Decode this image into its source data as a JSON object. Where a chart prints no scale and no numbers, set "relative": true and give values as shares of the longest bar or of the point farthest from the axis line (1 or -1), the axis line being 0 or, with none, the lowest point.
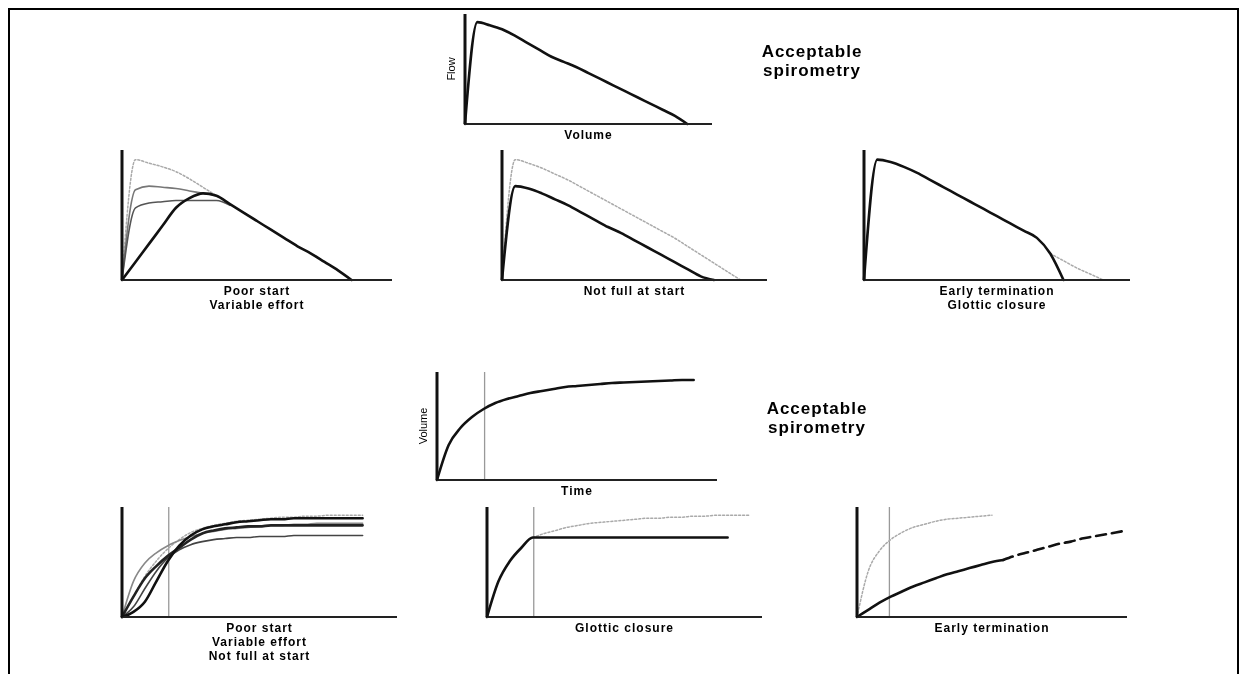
{
  "chart_data": [
    {
      "type": "line",
      "relative": true,
      "ylabel": "Flow",
      "xlabel": "Volume",
      "annotations": [
        "Acceptable\nspirometry"
      ],
      "categories": [
        null,
        null,
        null,
        null,
        null,
        null,
        null,
        null,
        null,
        null,
        null,
        null,
        null,
        null,
        null,
        null,
        null,
        null,
        null,
        null,
        null
      ],
      "series": [
        {
          "color": "#111111",
          "values": [
            0,
            1,
            0.97,
            0.93,
            0.87,
            0.8,
            0.73,
            0.66,
            0.61,
            0.56,
            0.5,
            0.44,
            0.38,
            0.32,
            0.26,
            0.2,
            0.14,
            0.08,
            0,
            null,
            null
          ]
        }
      ]
    },
    {
      "type": "line",
      "relative": true,
      "xlabel": "Poor start\nVariable effort",
      "categories": [
        null,
        null,
        null,
        null,
        null,
        null,
        null,
        null,
        null,
        null,
        null,
        null,
        null,
        null,
        null,
        null,
        null,
        null,
        null,
        null,
        null
      ],
      "series": [
        {
          "color": "#aaaaaa",
          "line_style": "dotted",
          "values": [
            0,
            1,
            0.97,
            0.94,
            0.9,
            0.84,
            0.77,
            0.7,
            0.63,
            0.56,
            0.49,
            0.42,
            0.35,
            0.28,
            0.22,
            0.15,
            0.08,
            0,
            null,
            null,
            null
          ]
        },
        {
          "color": "#777777",
          "values": [
            0,
            0.75,
            0.78,
            0.77,
            0.76,
            0.74,
            0.72,
            0.7,
            null,
            null,
            null,
            null,
            null,
            null,
            null,
            null,
            null,
            null,
            null,
            null,
            null
          ]
        },
        {
          "color": "#555555",
          "values": [
            0,
            0.6,
            0.64,
            0.65,
            0.66,
            0.66,
            0.66,
            0.66,
            0.62,
            null,
            null,
            null,
            null,
            null,
            null,
            null,
            null,
            null,
            null,
            null,
            null
          ]
        },
        {
          "color": "#111111",
          "values": [
            0,
            0.15,
            0.3,
            0.45,
            0.6,
            0.68,
            0.72,
            0.7,
            0.63,
            0.56,
            0.49,
            0.42,
            0.35,
            0.28,
            0.22,
            0.15,
            0.08,
            0,
            null,
            null,
            null
          ]
        }
      ]
    },
    {
      "type": "line",
      "relative": true,
      "xlabel": "Not full at start",
      "categories": [
        null,
        null,
        null,
        null,
        null,
        null,
        null,
        null,
        null,
        null,
        null,
        null,
        null,
        null,
        null,
        null,
        null,
        null,
        null,
        null,
        null
      ],
      "series": [
        {
          "color": "#aaaaaa",
          "line_style": "dotted",
          "values": [
            0,
            1,
            0.97,
            0.93,
            0.88,
            0.83,
            0.77,
            0.71,
            0.65,
            0.59,
            0.53,
            0.47,
            0.41,
            0.35,
            0.28,
            0.21,
            0.14,
            0.07,
            0,
            null,
            null
          ]
        },
        {
          "color": "#111111",
          "values": [
            0,
            0.78,
            0.76,
            0.72,
            0.67,
            0.62,
            0.56,
            0.5,
            0.44,
            0.39,
            0.33,
            0.27,
            0.21,
            0.15,
            0.09,
            0.03,
            0,
            null,
            null,
            null,
            null
          ]
        }
      ]
    },
    {
      "type": "line",
      "relative": true,
      "xlabel": "Early termination\nGlottic closure",
      "categories": [
        null,
        null,
        null,
        null,
        null,
        null,
        null,
        null,
        null,
        null,
        null,
        null,
        null,
        null,
        null,
        null,
        null,
        null,
        null,
        null,
        null
      ],
      "series": [
        {
          "color": "#aaaaaa",
          "line_style": "dotted",
          "values": [
            null,
            null,
            null,
            null,
            null,
            null,
            null,
            null,
            null,
            null,
            null,
            null,
            null,
            null,
            0.22,
            0.16,
            0.1,
            0.05,
            0,
            null,
            null
          ]
        },
        {
          "color": "#111111",
          "values": [
            0,
            1,
            0.98,
            0.94,
            0.89,
            0.83,
            0.77,
            0.71,
            0.65,
            0.59,
            0.53,
            0.47,
            0.41,
            0.35,
            0.22,
            0,
            null,
            null,
            null,
            null,
            null
          ]
        }
      ]
    },
    {
      "type": "line",
      "relative": true,
      "ylabel": "Volume",
      "xlabel": "Time",
      "annotations": [
        "Acceptable\nspirometry"
      ],
      "categories": [
        null,
        null,
        null,
        null,
        null,
        null,
        null,
        null,
        null,
        null,
        null,
        null,
        null,
        null,
        null,
        null,
        null,
        null,
        null,
        null,
        null,
        null,
        null,
        null,
        null
      ],
      "series": [
        {
          "color": "#111111",
          "values": [
            0,
            0.35,
            0.52,
            0.63,
            0.71,
            0.77,
            0.81,
            0.84,
            0.87,
            0.89,
            0.91,
            0.93,
            0.94,
            0.95,
            0.96,
            0.97,
            0.975,
            0.98,
            0.985,
            0.99,
            0.995,
            1,
            1,
            null,
            null
          ]
        }
      ]
    },
    {
      "type": "line",
      "relative": true,
      "xlabel": "Poor start\nVariable effort\nNot full at start",
      "categories": [
        null,
        null,
        null,
        null,
        null,
        null,
        null,
        null,
        null,
        null,
        null,
        null,
        null,
        null,
        null,
        null,
        null,
        null,
        null,
        null,
        null,
        null,
        null,
        null,
        null
      ],
      "series": [
        {
          "color": "#aaaaaa",
          "line_style": "dotted",
          "values": [
            0,
            0.2,
            0.4,
            0.55,
            0.67,
            0.76,
            0.83,
            0.87,
            0.9,
            0.92,
            0.94,
            0.95,
            0.96,
            0.97,
            0.98,
            0.98,
            0.99,
            0.99,
            1,
            1,
            1,
            1,
            null,
            null,
            null
          ]
        },
        {
          "color": "#888888",
          "values": [
            0,
            0.35,
            0.53,
            0.63,
            0.7,
            0.75,
            0.79,
            0.82,
            0.84,
            0.86,
            0.87,
            0.88,
            0.89,
            0.9,
            0.9,
            0.91,
            0.91,
            0.92,
            0.92,
            0.92,
            0.92,
            0.92,
            null,
            null,
            null
          ]
        },
        {
          "color": "#444444",
          "values": [
            0,
            0.1,
            0.28,
            0.45,
            0.58,
            0.66,
            0.71,
            0.74,
            0.76,
            0.77,
            0.78,
            0.78,
            0.79,
            0.79,
            0.79,
            0.8,
            0.8,
            0.8,
            0.8,
            0.8,
            0.8,
            0.8,
            null,
            null,
            null
          ]
        },
        {
          "color": "#222222",
          "values": [
            0,
            0.2,
            0.38,
            0.5,
            0.6,
            0.68,
            0.76,
            0.82,
            0.85,
            0.87,
            0.88,
            0.89,
            0.89,
            0.9,
            0.9,
            0.9,
            0.9,
            0.9,
            0.9,
            0.9,
            0.9,
            0.9,
            null,
            null,
            null
          ]
        },
        {
          "color": "#111111",
          "values": [
            0,
            0.05,
            0.15,
            0.35,
            0.55,
            0.7,
            0.8,
            0.86,
            0.89,
            0.91,
            0.93,
            0.94,
            0.95,
            0.96,
            0.96,
            0.97,
            0.97,
            0.97,
            0.97,
            0.97,
            0.97,
            0.97,
            null,
            null,
            null
          ]
        }
      ]
    },
    {
      "type": "line",
      "relative": true,
      "xlabel": "Glottic closure",
      "categories": [
        null,
        null,
        null,
        null,
        null,
        null,
        null,
        null,
        null,
        null,
        null,
        null,
        null,
        null,
        null,
        null,
        null,
        null,
        null,
        null,
        null,
        null,
        null,
        null,
        null
      ],
      "series": [
        {
          "color": "#aaaaaa",
          "line_style": "dotted",
          "values": [
            null,
            null,
            null,
            null,
            0.78,
            0.82,
            0.85,
            0.88,
            0.9,
            0.92,
            0.93,
            0.94,
            0.95,
            0.96,
            0.97,
            0.97,
            0.98,
            0.98,
            0.99,
            0.99,
            1,
            1,
            1,
            1,
            null
          ]
        },
        {
          "color": "#111111",
          "values": [
            0,
            0.35,
            0.55,
            0.68,
            0.78,
            0.78,
            0.78,
            0.78,
            0.78,
            0.78,
            0.78,
            0.78,
            0.78,
            0.78,
            0.78,
            0.78,
            0.78,
            0.78,
            0.78,
            0.78,
            0.78,
            0.78,
            null,
            null,
            null
          ]
        }
      ]
    },
    {
      "type": "line",
      "relative": true,
      "xlabel": "Early termination",
      "categories": [
        null,
        null,
        null,
        null,
        null,
        null,
        null,
        null,
        null,
        null,
        null,
        null,
        null,
        null,
        null,
        null,
        null,
        null,
        null,
        null,
        null,
        null,
        null,
        null,
        null
      ],
      "series": [
        {
          "color": "#aaaaaa",
          "line_style": "dotted",
          "values": [
            0,
            0.45,
            0.65,
            0.76,
            0.83,
            0.88,
            0.91,
            0.94,
            0.96,
            0.97,
            0.98,
            0.99,
            1,
            null,
            null,
            null,
            null,
            null,
            null,
            null,
            null,
            null,
            null,
            null,
            null
          ]
        },
        {
          "color": "#111111",
          "values": [
            0,
            0.07,
            0.14,
            0.2,
            0.25,
            0.3,
            0.34,
            0.38,
            0.42,
            0.45,
            0.48,
            0.51,
            0.54,
            0.56,
            null,
            null,
            null,
            null,
            null,
            null,
            null,
            null,
            null,
            null,
            null
          ]
        },
        {
          "color": "#111111",
          "line_style": "dashed",
          "values": [
            null,
            null,
            null,
            null,
            null,
            null,
            null,
            null,
            null,
            null,
            null,
            null,
            null,
            0.56,
            0.6,
            0.63,
            0.66,
            0.69,
            0.72,
            0.74,
            0.77,
            0.79,
            0.81,
            0.83,
            0.85
          ]
        }
      ]
    }
  ]
}
